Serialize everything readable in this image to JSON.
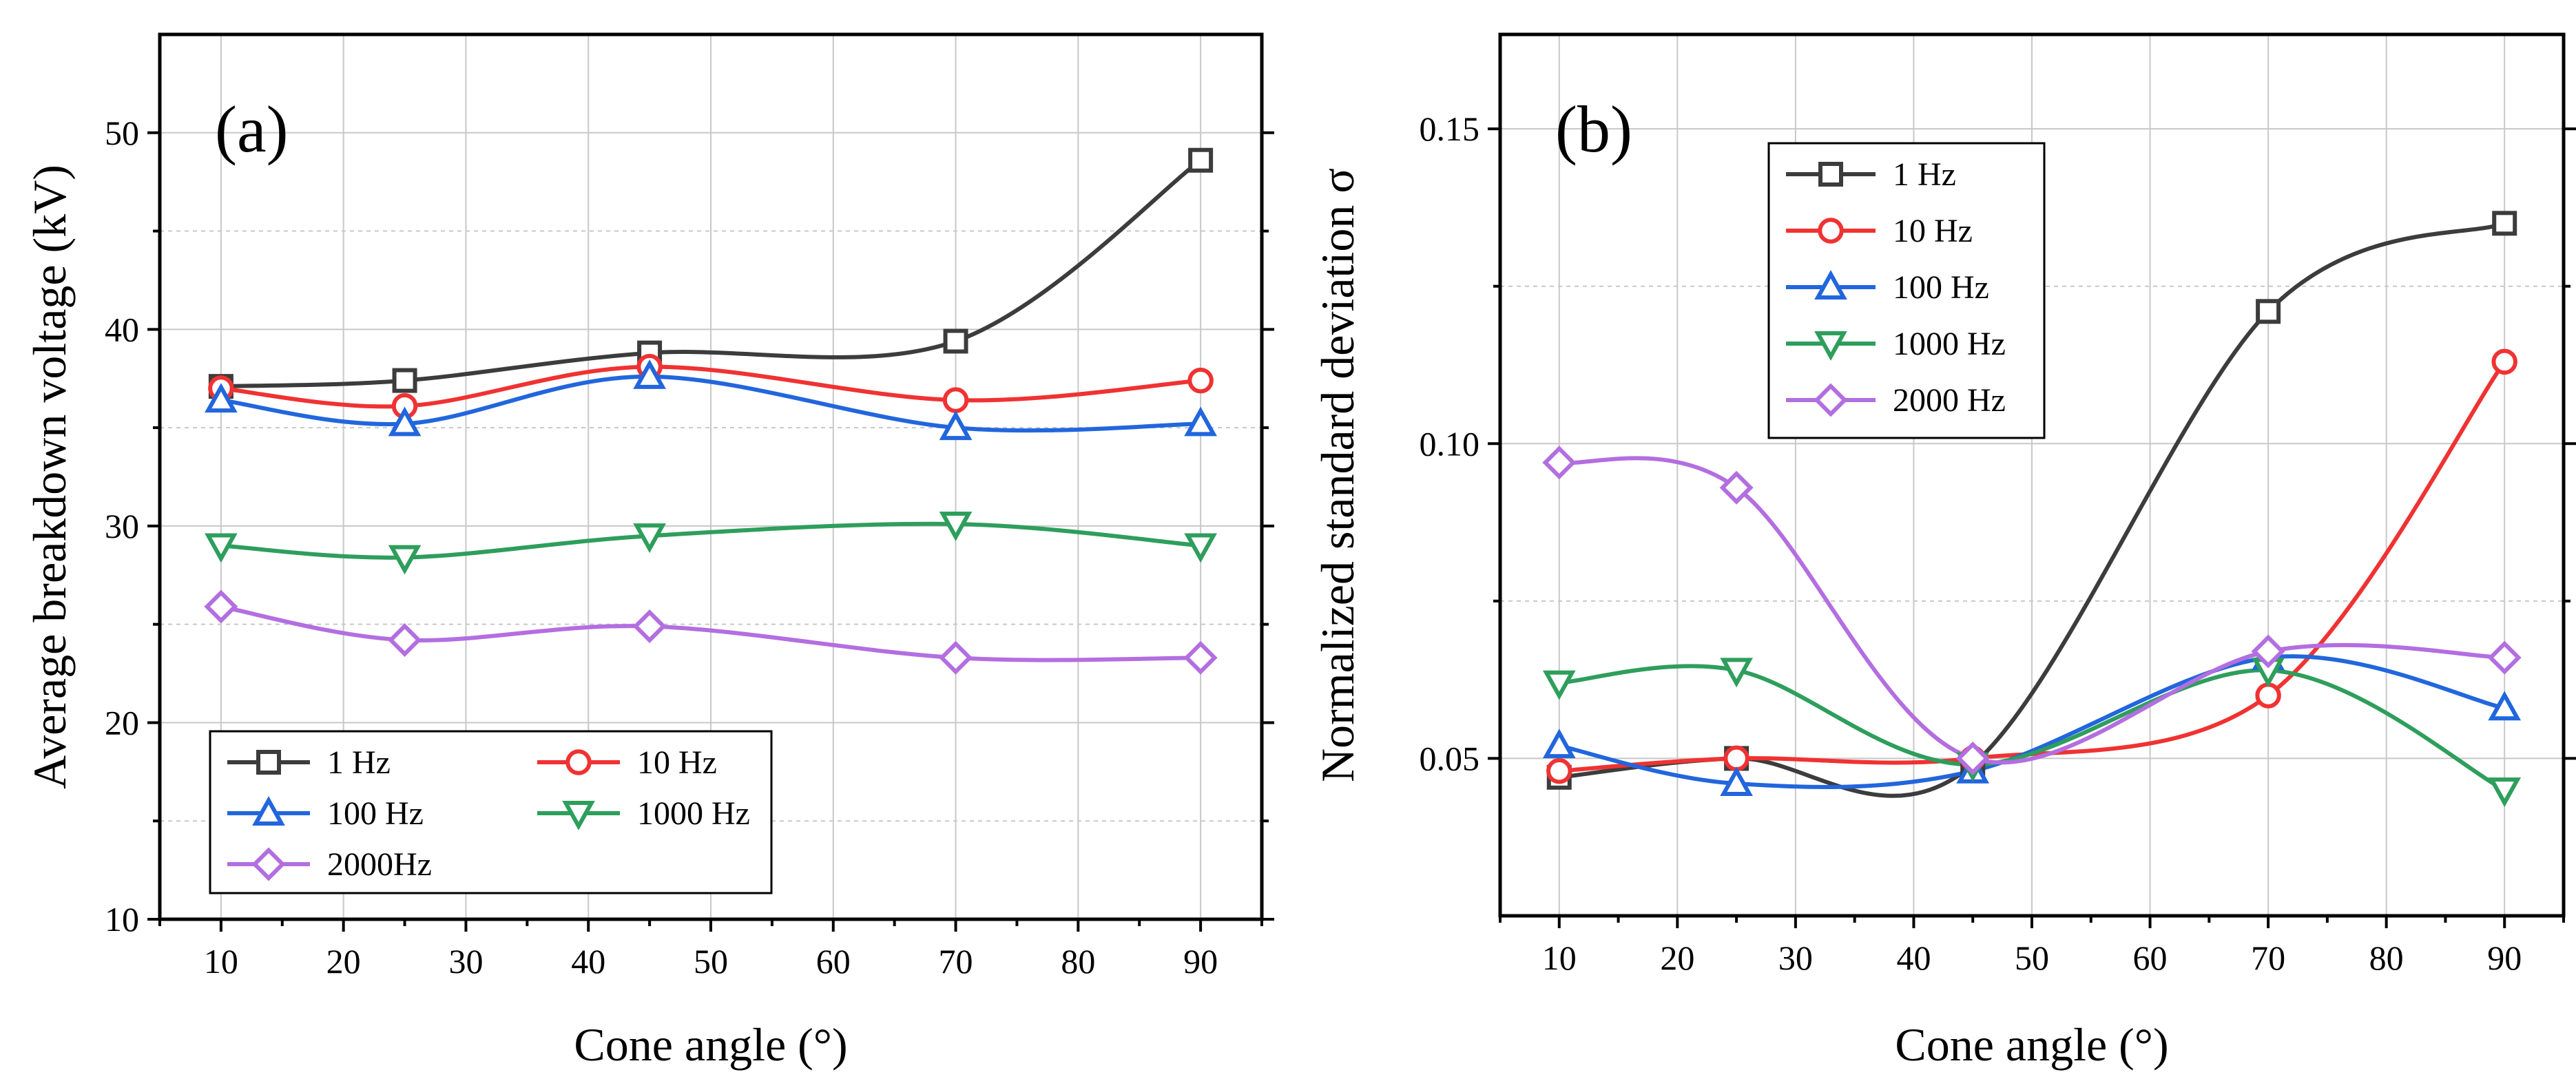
{
  "chart_data": [
    {
      "type": "line",
      "panel_label": "(a)",
      "title": "",
      "xlabel": "Cone angle (°)",
      "ylabel": "Average breakdown voltage (kV)",
      "xlim": [
        5,
        95
      ],
      "ylim": [
        10,
        55
      ],
      "xticks": [
        10,
        20,
        30,
        40,
        50,
        60,
        70,
        80,
        90
      ],
      "yticks": [
        10,
        20,
        30,
        40,
        50
      ],
      "grid": true,
      "legend_position": "bottom-left",
      "legend_columns": 2,
      "x": [
        10,
        25,
        45,
        70,
        90
      ],
      "series": [
        {
          "name": "1 Hz",
          "color": "#3c3c3c",
          "marker": "square",
          "values": [
            37.1,
            37.4,
            38.8,
            39.4,
            48.6
          ]
        },
        {
          "name": "10  Hz",
          "color": "#f03232",
          "marker": "circle",
          "values": [
            37.0,
            36.1,
            38.1,
            36.4,
            37.4
          ]
        },
        {
          "name": "100 Hz",
          "color": "#2266dd",
          "marker": "triangle-up",
          "values": [
            36.4,
            35.2,
            37.6,
            35.0,
            35.2
          ]
        },
        {
          "name": "1000 Hz",
          "color": "#2e9e5c",
          "marker": "triangle-down",
          "values": [
            29.0,
            28.4,
            29.5,
            30.1,
            29.0
          ]
        },
        {
          "name": "2000Hz",
          "color": "#b36ee0",
          "marker": "diamond",
          "values": [
            25.9,
            24.2,
            24.9,
            23.3,
            23.3
          ]
        }
      ]
    },
    {
      "type": "line",
      "panel_label": "(b)",
      "title": "",
      "xlabel": "Cone angle (°)",
      "ylabel": "Normalized standard deviation σ",
      "xlim": [
        5,
        95
      ],
      "ylim": [
        0.025,
        0.165
      ],
      "xticks": [
        10,
        20,
        30,
        40,
        50,
        60,
        70,
        80,
        90
      ],
      "yticks": [
        0.05,
        0.1,
        0.15
      ],
      "ytick_labels": [
        "0.05",
        "0.10",
        "0.15"
      ],
      "grid": true,
      "legend_position": "top-left",
      "legend_columns": 1,
      "x": [
        10,
        25,
        45,
        70,
        90
      ],
      "series": [
        {
          "name": "1 Hz",
          "color": "#3c3c3c",
          "marker": "square",
          "values": [
            0.047,
            0.05,
            0.049,
            0.121,
            0.135
          ]
        },
        {
          "name": "10 Hz",
          "color": "#f03232",
          "marker": "circle",
          "values": [
            0.048,
            0.05,
            0.05,
            0.06,
            0.113
          ]
        },
        {
          "name": "100 Hz",
          "color": "#2266dd",
          "marker": "triangle-up",
          "values": [
            0.052,
            0.046,
            0.048,
            0.066,
            0.058
          ]
        },
        {
          "name": "1000 Hz",
          "color": "#2e9e5c",
          "marker": "triangle-down",
          "values": [
            0.062,
            0.064,
            0.049,
            0.064,
            0.045
          ]
        },
        {
          "name": "2000 Hz",
          "color": "#b36ee0",
          "marker": "diamond",
          "values": [
            0.097,
            0.093,
            0.05,
            0.067,
            0.066
          ]
        }
      ]
    }
  ]
}
